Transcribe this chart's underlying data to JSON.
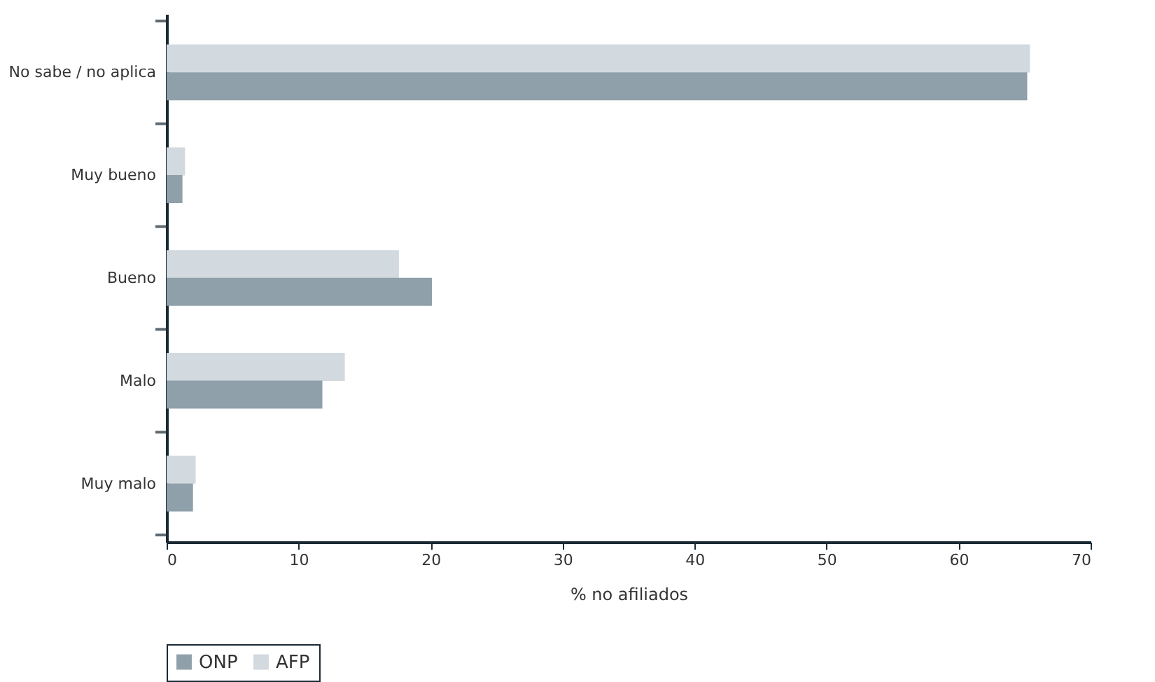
{
  "chart_data": {
    "type": "bar",
    "orientation": "horizontal",
    "xlabel": "% no afiliados",
    "categories": [
      "No sabe / no aplica",
      "Muy bueno",
      "Bueno",
      "Malo",
      "Muy malo"
    ],
    "series": [
      {
        "name": "AFP",
        "color": "#d2d9df",
        "values": [
          65.4,
          1.4,
          17.6,
          13.5,
          2.2
        ]
      },
      {
        "name": "ONP",
        "color": "#8fa0aa",
        "values": [
          65.2,
          1.2,
          20.1,
          11.8,
          2.0
        ]
      }
    ],
    "xlim": [
      0,
      70
    ],
    "xticks": [
      0,
      10,
      20,
      30,
      40,
      50,
      60,
      70
    ],
    "grid": false,
    "legend": "bottom"
  }
}
